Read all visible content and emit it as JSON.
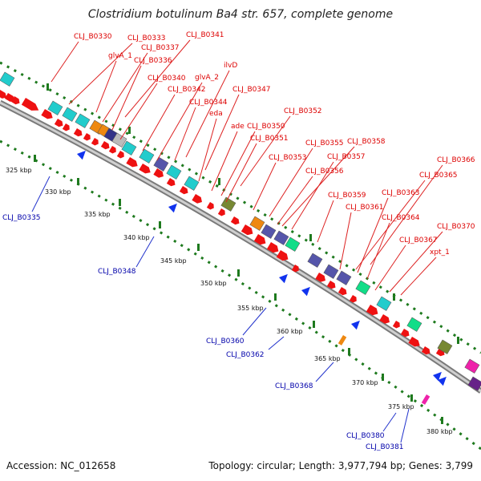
{
  "title": "Clostridium botulinum Ba4 str. 657, complete genome",
  "accession": "Accession: NC_012658",
  "topology": "Topology: circular; Length: 3,977,794 bp; Genes: 3,799",
  "colors": {
    "label_red": "#dd0000",
    "label_blue": "#0000aa",
    "forward_arrow": "#ee1111",
    "reverse_arrow": "#1133ee",
    "backbone": "#a8a8a8",
    "kbp_dots": "#1e7a1e",
    "cyan": "#22cccc",
    "orange": "#ee8811",
    "navy": "#333388",
    "indigo": "#5555aa",
    "green": "#11dd88",
    "olive": "#778833",
    "magenta": "#ee22aa",
    "purple": "#662288",
    "gray": "#bbbbbb"
  },
  "scale": {
    "outer": [
      "325 kbp",
      "335 kbp",
      "345 kbp",
      "355 kbp",
      "365 kbp",
      "375 kbp"
    ],
    "inner": [
      "330 kbp",
      "340 kbp",
      "350 kbp",
      "360 kbp",
      "370 kbp",
      "380 kbp"
    ]
  },
  "labels_top": [
    "CLJ_B0330",
    "CLJ_B0333",
    "CLJ_B0341",
    "glvA_1",
    "CLJ_B0337",
    "CLJ_B0336",
    "ilvD",
    "CLJ_B0340",
    "glvA_2",
    "CLJ_B0342",
    "CLJ_B0347",
    "CLJ_B0344",
    "eda",
    "CLJ_B0352",
    "ade",
    "CLJ_B0350",
    "CLJ_B0351",
    "CLJ_B0355",
    "CLJ_B0358",
    "CLJ_B0353",
    "CLJ_B0357",
    "CLJ_B0356",
    "CLJ_B0366",
    "CLJ_B0365",
    "CLJ_B0359",
    "CLJ_B0363",
    "CLJ_B0361",
    "CLJ_B0364",
    "CLJ_B0370",
    "CLJ_B0367",
    "xpt_1"
  ],
  "labels_bottom": [
    "CLJ_B0335",
    "CLJ_B0348",
    "CLJ_B0360",
    "CLJ_B0362",
    "CLJ_B0368",
    "CLJ_B0380",
    "CLJ_B0381"
  ]
}
